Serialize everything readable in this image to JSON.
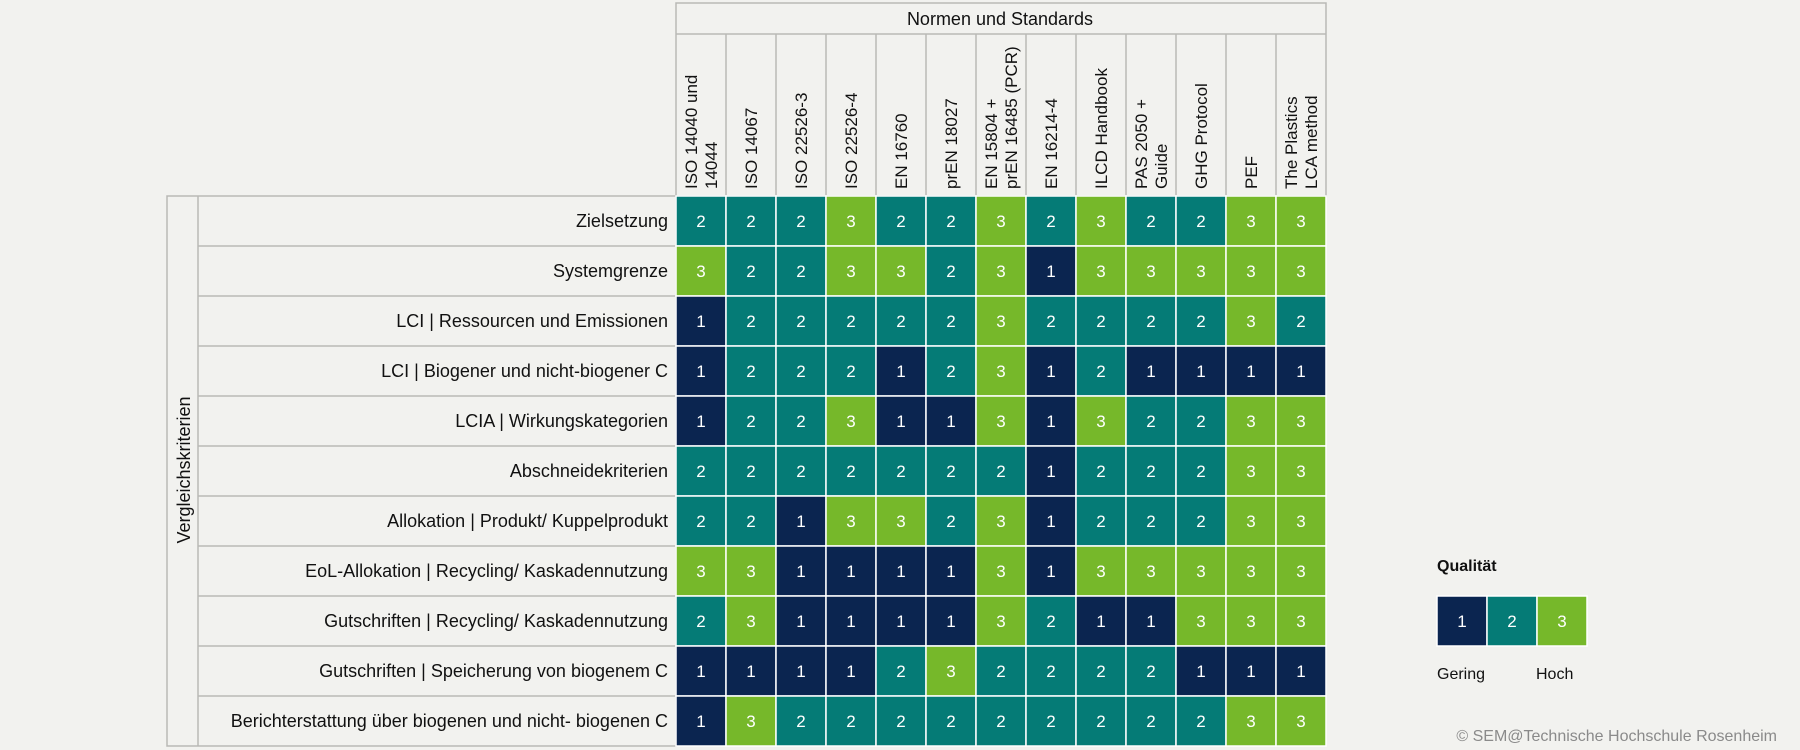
{
  "chart_data": {
    "type": "heatmap",
    "column_group_title": "Normen und Standards",
    "row_group_title": "Vergleichskriterien",
    "columns": [
      [
        "ISO 14040 und",
        "14044"
      ],
      [
        "ISO 14067"
      ],
      [
        "ISO 22526-3"
      ],
      [
        "ISO 22526-4"
      ],
      [
        "EN 16760"
      ],
      [
        "prEN 18027"
      ],
      [
        "EN 15804 +",
        "prEN 16485 (PCR)"
      ],
      [
        "EN 16214-4"
      ],
      [
        "ILCD Handbook"
      ],
      [
        "PAS 2050 +",
        "Guide"
      ],
      [
        "GHG Protocol"
      ],
      [
        "PEF"
      ],
      [
        "The Plastics",
        "LCA method"
      ]
    ],
    "rows": [
      "Zielsetzung",
      "Systemgrenze",
      "LCI | Ressourcen und Emissionen",
      "LCI | Biogener und nicht-biogener C",
      "LCIA | Wirkungskategorien",
      "Abschneidekriterien",
      "Allokation | Produkt/ Kuppelprodukt",
      "EoL-Allokation | Recycling/ Kaskadennutzung",
      "Gutschriften | Recycling/ Kaskadennutzung",
      "Gutschriften | Speicherung von biogenem C",
      "Berichterstattung über biogenen und nicht- biogenen C"
    ],
    "values": [
      [
        2,
        2,
        2,
        3,
        2,
        2,
        3,
        2,
        3,
        2,
        2,
        3,
        3
      ],
      [
        3,
        2,
        2,
        3,
        3,
        2,
        3,
        1,
        3,
        3,
        3,
        3,
        3
      ],
      [
        1,
        2,
        2,
        2,
        2,
        2,
        3,
        2,
        2,
        2,
        2,
        3,
        2
      ],
      [
        1,
        2,
        2,
        2,
        1,
        2,
        3,
        1,
        2,
        1,
        1,
        1,
        1
      ],
      [
        1,
        2,
        2,
        3,
        1,
        1,
        3,
        1,
        3,
        2,
        2,
        3,
        3
      ],
      [
        2,
        2,
        2,
        2,
        2,
        2,
        2,
        1,
        2,
        2,
        2,
        3,
        3
      ],
      [
        2,
        2,
        1,
        3,
        3,
        2,
        3,
        1,
        2,
        2,
        2,
        3,
        3
      ],
      [
        3,
        3,
        1,
        1,
        1,
        1,
        3,
        1,
        3,
        3,
        3,
        3,
        3
      ],
      [
        2,
        3,
        1,
        1,
        1,
        1,
        3,
        2,
        1,
        1,
        3,
        3,
        3
      ],
      [
        1,
        1,
        1,
        1,
        2,
        3,
        2,
        2,
        2,
        2,
        1,
        1,
        1
      ],
      [
        1,
        3,
        2,
        2,
        2,
        2,
        2,
        2,
        2,
        2,
        2,
        3,
        3
      ]
    ],
    "legend": {
      "title": "Qualität",
      "levels": [
        "1",
        "2",
        "3"
      ],
      "low_label": "Gering",
      "high_label": "Hoch"
    },
    "colors": {
      "1": "#0b2550",
      "2": "#057b76",
      "3": "#76b82a"
    }
  },
  "copyright": "© SEM@Technische Hochschule Rosenheim"
}
